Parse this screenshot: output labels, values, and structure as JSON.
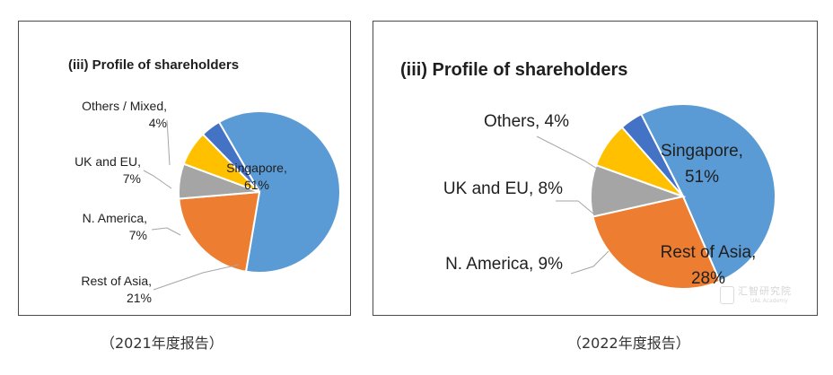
{
  "chart_data": [
    {
      "type": "pie",
      "title": "(iii) Profile of shareholders",
      "categories": [
        "Singapore",
        "Rest of Asia",
        "N. America",
        "UK and EU",
        "Others / Mixed"
      ],
      "values": [
        61,
        21,
        7,
        7,
        4
      ],
      "colors": [
        "#5b9bd5",
        "#ed7d31",
        "#a5a5a5",
        "#ffc000",
        "#4472c4"
      ],
      "labels": [
        [
          "Singapore,",
          "61%"
        ],
        [
          "Rest of Asia,",
          "21%"
        ],
        [
          "N. America,",
          "7%"
        ],
        [
          "UK and EU,",
          "7%"
        ],
        [
          "Others / Mixed,",
          "4%"
        ]
      ],
      "label_placement": [
        "inside",
        "outside",
        "outside",
        "outside",
        "outside"
      ],
      "caption": "（2021年度报告）"
    },
    {
      "type": "pie",
      "title": "(iii) Profile of shareholders",
      "categories": [
        "Singapore",
        "Rest of Asia",
        "N. America",
        "UK and EU",
        "Others"
      ],
      "values": [
        51,
        28,
        9,
        8,
        4
      ],
      "colors": [
        "#5b9bd5",
        "#ed7d31",
        "#a5a5a5",
        "#ffc000",
        "#4472c4"
      ],
      "labels": [
        [
          "Singapore,",
          "51%"
        ],
        [
          "Rest of Asia,",
          "28%"
        ],
        [
          "N. America, 9%"
        ],
        [
          "UK and EU, 8%"
        ],
        [
          "Others, 4%"
        ]
      ],
      "label_placement": [
        "inside",
        "inside",
        "outside",
        "outside",
        "outside"
      ],
      "caption": "（2022年度报告）"
    }
  ],
  "watermark": {
    "text": "汇智研究院",
    "subtext": "UAL Academy"
  }
}
